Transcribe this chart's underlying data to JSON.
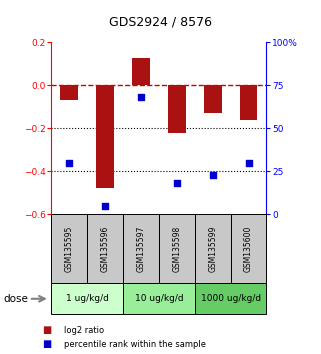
{
  "title": "GDS2924 / 8576",
  "samples": [
    "GSM135595",
    "GSM135596",
    "GSM135597",
    "GSM135598",
    "GSM135599",
    "GSM135600"
  ],
  "log2_ratio": [
    -0.07,
    -0.48,
    0.13,
    -0.22,
    -0.13,
    -0.16
  ],
  "percentile_rank": [
    30,
    5,
    68,
    18,
    23,
    30
  ],
  "ylim_left": [
    -0.6,
    0.2
  ],
  "ylim_right": [
    0,
    100
  ],
  "yticks_left": [
    -0.6,
    -0.4,
    -0.2,
    0.0,
    0.2
  ],
  "yticks_right": [
    0,
    25,
    50,
    75,
    100
  ],
  "ytick_labels_right": [
    "0",
    "25",
    "50",
    "75",
    "100%"
  ],
  "dose_groups": [
    {
      "label": "1 ug/kg/d",
      "samples": [
        0,
        1
      ],
      "color": "#ccffcc"
    },
    {
      "label": "10 ug/kg/d",
      "samples": [
        2,
        3
      ],
      "color": "#99ee99"
    },
    {
      "label": "1000 ug/kg/d",
      "samples": [
        4,
        5
      ],
      "color": "#66cc66"
    }
  ],
  "bar_color": "#aa1111",
  "dot_color": "#0000cc",
  "bar_width": 0.5,
  "background_color": "#ffffff",
  "zero_line_color": "#cc0000",
  "sample_box_color": "#c8c8c8",
  "dose_label": "dose",
  "legend_bar_label": "log2 ratio",
  "legend_dot_label": "percentile rank within the sample"
}
